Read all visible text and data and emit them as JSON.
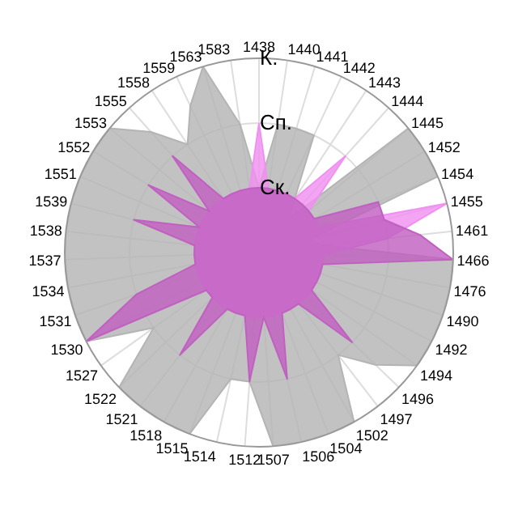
{
  "chart_data": {
    "type": "radar",
    "categories": [
      "1438",
      "1440",
      "1441",
      "1442",
      "1443",
      "1444",
      "1445",
      "1452",
      "1454",
      "1455",
      "1461",
      "1466",
      "1476",
      "1490",
      "1492",
      "1494",
      "1496",
      "1497",
      "1502",
      "1504",
      "1506",
      "1507",
      "1512",
      "1514",
      "1515",
      "1518",
      "1521",
      "1522",
      "1527",
      "1530",
      "1531",
      "1534",
      "1537",
      "1538",
      "1539",
      "1551",
      "1552",
      "1553",
      "1555",
      "1558",
      "1559",
      "1563",
      "1583"
    ],
    "ylim": [
      0,
      3
    ],
    "yticks": [
      {
        "value": 1,
        "label": "Ск."
      },
      {
        "value": 2,
        "label": "Сп."
      },
      {
        "value": 3,
        "label": "К."
      }
    ],
    "grid": true,
    "marker": "none",
    "series": [
      {
        "color": "#b4b4b4",
        "values": [
          1,
          2,
          2,
          2,
          1,
          0.7,
          3,
          3,
          3,
          0.8,
          1,
          3,
          3,
          3,
          3,
          3,
          2.5,
          2,
          3,
          3,
          3,
          3,
          2,
          2,
          3,
          3,
          3,
          3,
          2,
          3,
          3,
          3,
          3,
          3,
          3,
          3,
          3,
          3,
          2.5,
          2,
          2.5,
          3,
          2
        ]
      },
      {
        "color": "#f090f0",
        "values": [
          2,
          1,
          1,
          1,
          1,
          2,
          1,
          1,
          1,
          3,
          2,
          1,
          1,
          1,
          1,
          1,
          1,
          1,
          1,
          1,
          1,
          1,
          1,
          1,
          1,
          1,
          1,
          1,
          1,
          1,
          1,
          1,
          1,
          1,
          1,
          1,
          1,
          1,
          1,
          1,
          1,
          1,
          1
        ]
      },
      {
        "color": "#c060c0",
        "values": [
          1,
          1,
          1,
          1,
          1,
          1,
          1,
          1,
          2,
          2,
          2.5,
          3,
          1,
          1,
          1,
          1,
          2,
          1,
          1,
          1,
          2,
          1,
          2,
          1,
          1,
          1,
          2,
          1,
          1,
          3,
          2,
          1,
          1,
          1,
          2,
          1,
          2,
          1,
          2,
          1,
          1,
          1,
          1
        ]
      }
    ]
  }
}
